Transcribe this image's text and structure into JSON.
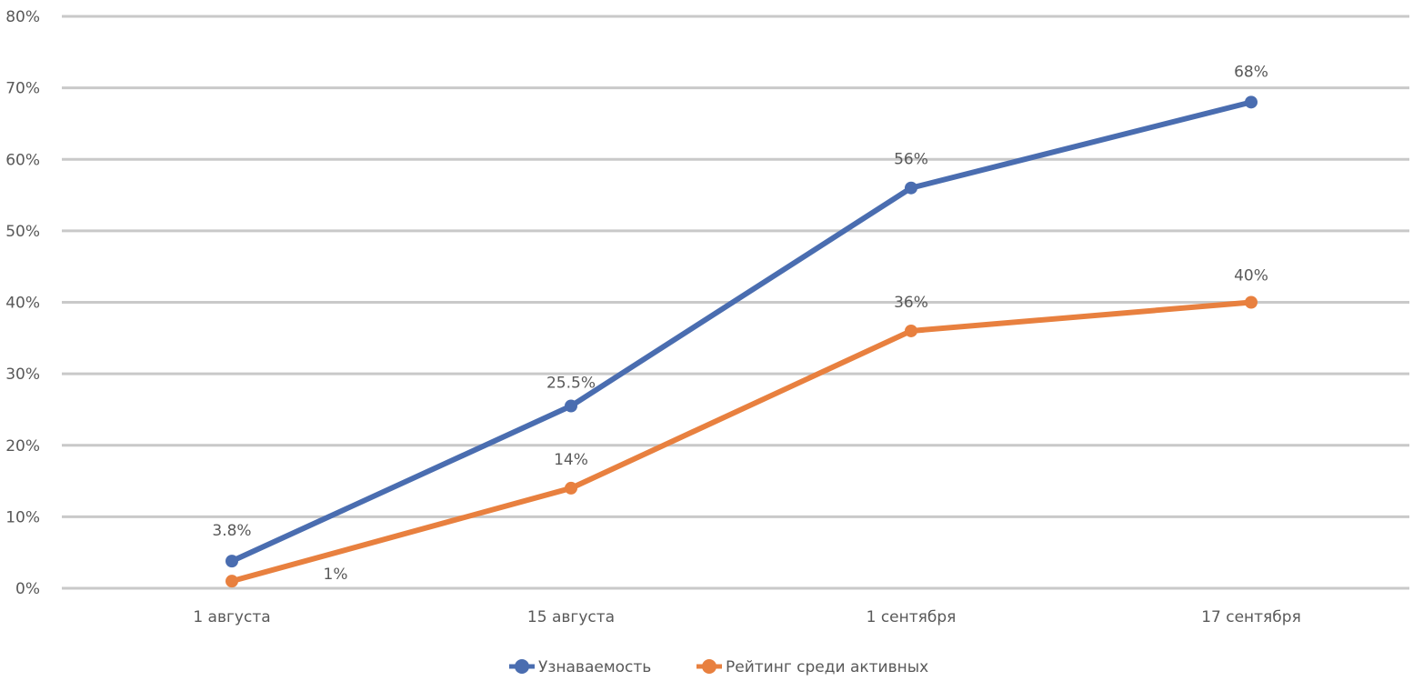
{
  "chart_data": {
    "type": "line",
    "categories": [
      "1 августа",
      "15 августа",
      "1 сентября",
      "17 сентября"
    ],
    "series": [
      {
        "name": "Узнаваемость",
        "values": [
          3.8,
          25.5,
          56,
          68
        ],
        "labels": [
          "3.8%",
          "25.5%",
          "56%",
          "68%"
        ],
        "color": "#4a6db0"
      },
      {
        "name": "Рейтинг среди активных",
        "values": [
          1,
          14,
          36,
          40
        ],
        "labels": [
          "1%",
          "14%",
          "36%",
          "40%"
        ],
        "color": "#e8803f"
      }
    ],
    "yticks": [
      "0%",
      "10%",
      "20%",
      "30%",
      "40%",
      "50%",
      "60%",
      "70%",
      "80%"
    ],
    "ylim": [
      0,
      80
    ],
    "grid": true,
    "legend_position": "bottom"
  }
}
